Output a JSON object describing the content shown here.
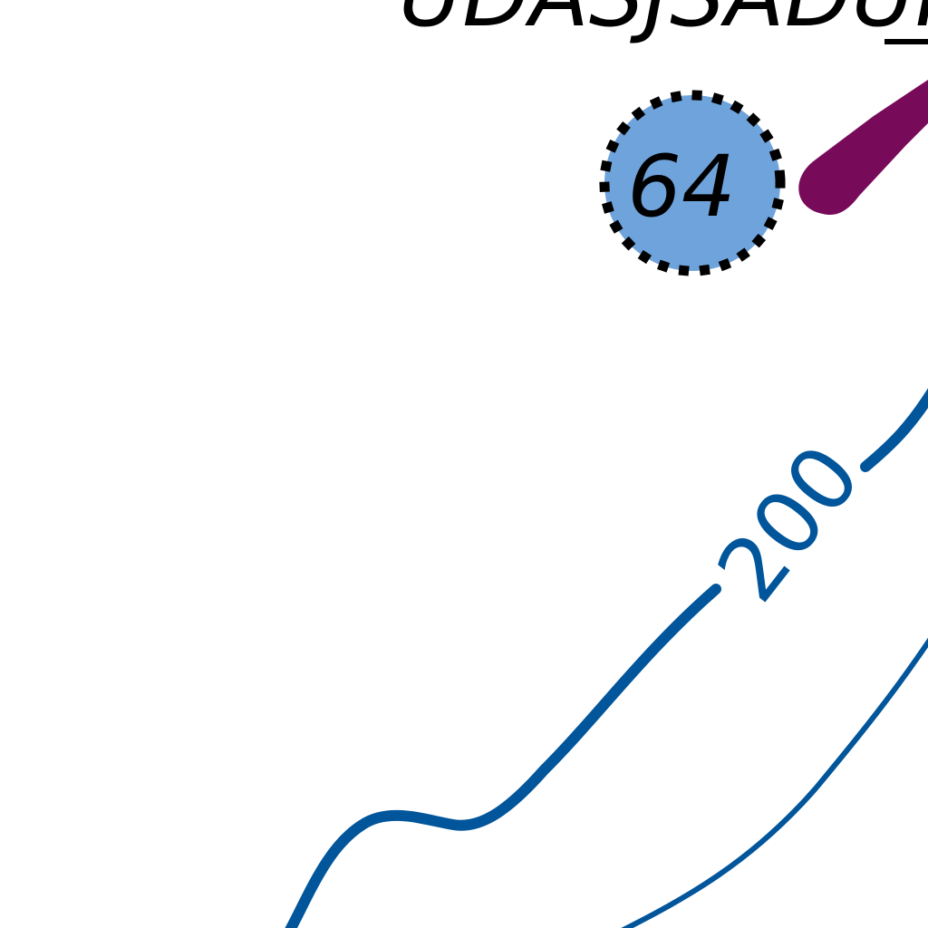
{
  "map": {
    "top_label": "UDASJSADUI",
    "station": {
      "label": "64",
      "fill_color": "#6fa3dc"
    },
    "marker_color": "#780a5a",
    "contour": {
      "label": "200",
      "color": "#00559b"
    }
  }
}
